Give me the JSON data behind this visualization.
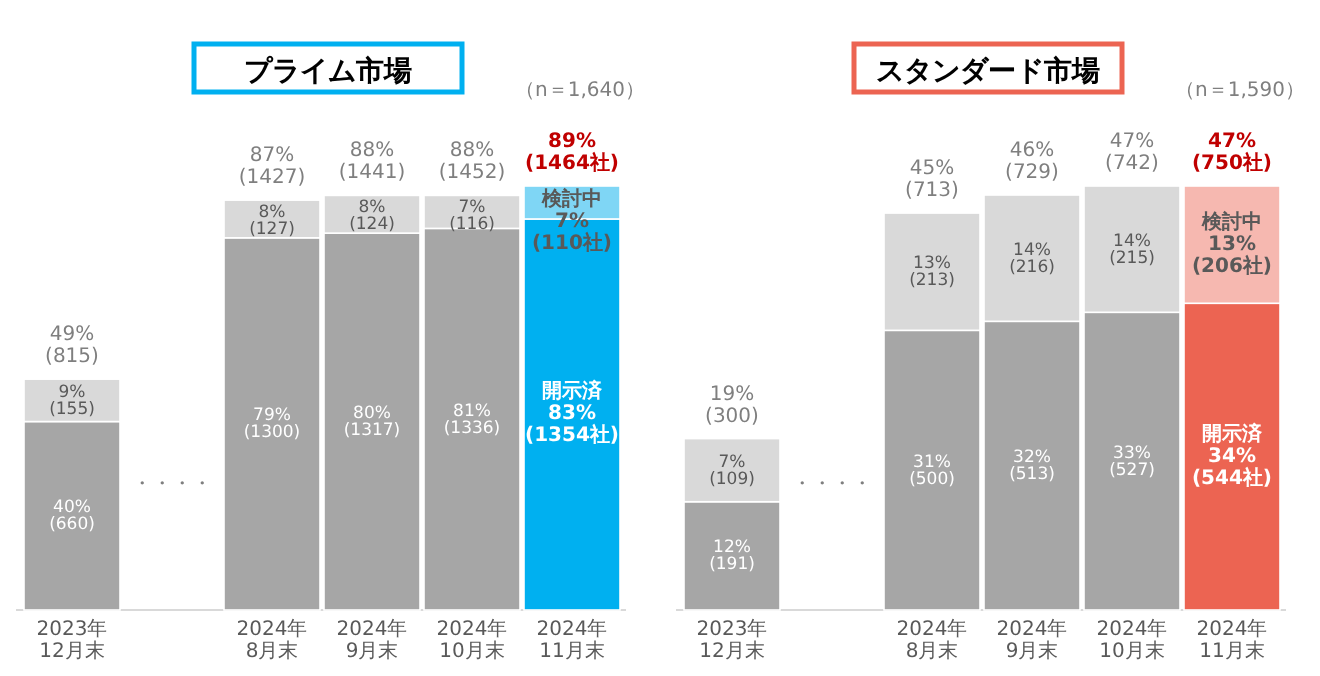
{
  "chart_data": [
    {
      "type": "bar",
      "stacked": true,
      "title": "プライム市場",
      "subtitle": "（n＝1,640）",
      "categories": [
        "2023年12月末",
        null,
        "2024年8月末",
        "2024年9月末",
        "2024年10月末",
        "2024年11月末"
      ],
      "series": [
        {
          "values": [
            40,
            null,
            79,
            80,
            81,
            83
          ],
          "colors": [
            "#a6a6a6",
            null,
            "#a6a6a6",
            "#a6a6a6",
            "#a6a6a6",
            "#00b0f0"
          ],
          "value_labels": [
            "40%\n(660)",
            null,
            "79%\n(1300)",
            "80%\n(1317)",
            "81%\n(1336)",
            "開示済\n83%\n(1354社)"
          ]
        },
        {
          "values": [
            9,
            null,
            8,
            8,
            7,
            7
          ],
          "colors": [
            "#d9d9d9",
            null,
            "#d9d9d9",
            "#d9d9d9",
            "#d9d9d9",
            "#7fd6f5"
          ],
          "value_labels": [
            "9%\n(155)",
            null,
            "8%\n(127)",
            "8%\n(124)",
            "7%\n(116)",
            "検討中\n7%\n(110社)"
          ]
        }
      ],
      "totals": [
        "49%\n(815)",
        null,
        "87%\n(1427)",
        "88%\n(1441)",
        "88%\n(1452)",
        "89%\n(1464社)"
      ],
      "annotations": [
        "・・・・"
      ]
    },
    {
      "type": "bar",
      "stacked": true,
      "title": "スタンダード市場",
      "subtitle": "（n＝1,590）",
      "categories": [
        "2023年12月末",
        null,
        "2024年8月末",
        "2024年9月末",
        "2024年10月末",
        "2024年11月末"
      ],
      "series": [
        {
          "values": [
            12,
            null,
            31,
            32,
            33,
            34
          ],
          "colors": [
            "#a6a6a6",
            null,
            "#a6a6a6",
            "#a6a6a6",
            "#a6a6a6",
            "#ec6452"
          ],
          "value_labels": [
            "12%\n(191)",
            null,
            "31%\n(500)",
            "32%\n(513)",
            "33%\n(527)",
            "開示済\n34%\n(544社)"
          ]
        },
        {
          "values": [
            7,
            null,
            13,
            14,
            14,
            13
          ],
          "colors": [
            "#d9d9d9",
            null,
            "#d9d9d9",
            "#d9d9d9",
            "#d9d9d9",
            "#f6b8b0"
          ],
          "value_labels": [
            "7%\n(109)",
            null,
            "13%\n(213)",
            "14%\n(216)",
            "14%\n(215)",
            "検討中\n13%\n(206社)"
          ]
        }
      ],
      "totals": [
        "19%\n(300)",
        null,
        "45%\n(713)",
        "46%\n(729)",
        "47%\n(742)",
        "47%\n(750社)"
      ],
      "annotations": [
        "・・・・"
      ]
    }
  ]
}
